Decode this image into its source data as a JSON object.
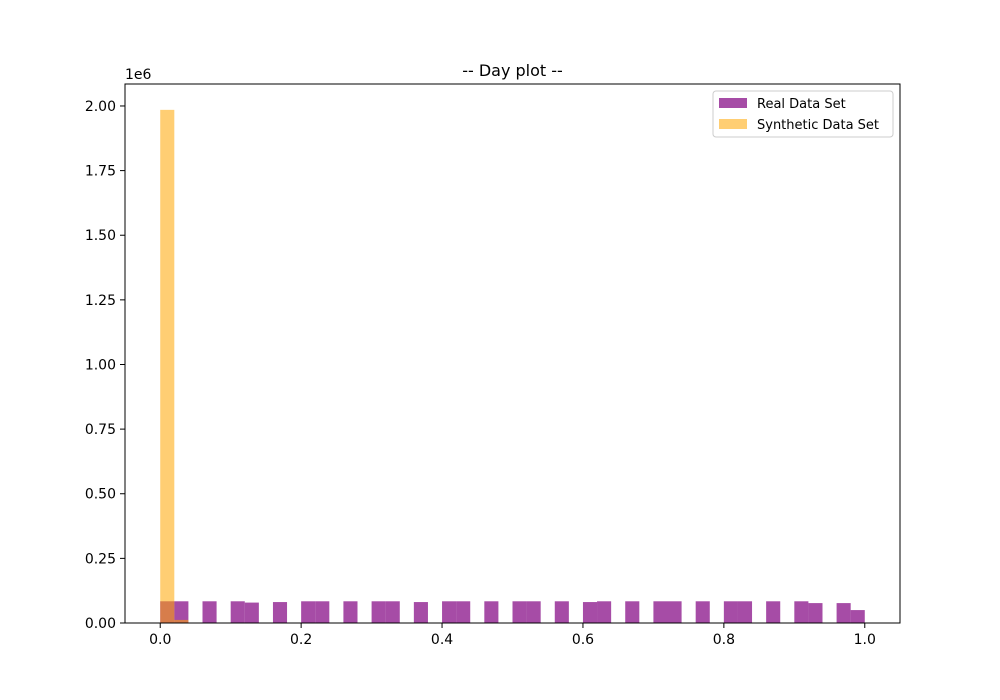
{
  "chart_data": {
    "type": "bar",
    "title": "-- Day plot --",
    "xlabel": "",
    "ylabel": "",
    "y_offset_label": "1e6",
    "xlim": [
      -0.05,
      1.05
    ],
    "ylim": [
      0,
      2085000
    ],
    "x_ticks": [
      0.0,
      0.2,
      0.4,
      0.6,
      0.8,
      1.0
    ],
    "x_tick_labels": [
      "0.0",
      "0.2",
      "0.4",
      "0.6",
      "0.8",
      "1.0"
    ],
    "y_ticks": [
      0,
      250000,
      500000,
      750000,
      1000000,
      1250000,
      1500000,
      1750000,
      2000000
    ],
    "y_tick_labels": [
      "0.00",
      "0.25",
      "0.50",
      "0.75",
      "1.00",
      "1.25",
      "1.50",
      "1.75",
      "2.00"
    ],
    "legend_position": "top-right",
    "bin_edges": [
      0.0,
      0.02,
      0.04,
      0.06,
      0.08,
      0.1,
      0.12,
      0.14,
      0.16,
      0.18,
      0.2,
      0.22,
      0.24,
      0.26,
      0.28,
      0.3,
      0.32,
      0.34,
      0.36,
      0.38,
      0.4,
      0.42,
      0.44,
      0.46,
      0.48,
      0.5,
      0.52,
      0.54,
      0.56,
      0.58,
      0.6,
      0.62,
      0.64,
      0.66,
      0.68,
      0.7,
      0.72,
      0.74,
      0.76,
      0.78,
      0.8,
      0.82,
      0.84,
      0.86,
      0.88,
      0.9,
      0.92,
      0.94,
      0.96,
      0.98,
      1.0
    ],
    "series": [
      {
        "name": "Real Data Set",
        "color": "#800080",
        "opacity": 0.7,
        "values": [
          84000,
          84000,
          0,
          84000,
          0,
          84000,
          79000,
          0,
          81000,
          0,
          84000,
          84000,
          0,
          84000,
          0,
          84000,
          84000,
          0,
          81000,
          0,
          84000,
          84000,
          0,
          84000,
          0,
          84000,
          84000,
          0,
          84000,
          0,
          81000,
          84000,
          0,
          84000,
          0,
          84000,
          84000,
          0,
          84000,
          0,
          84000,
          84000,
          0,
          84000,
          0,
          84000,
          77000,
          0,
          77000,
          50000
        ]
      },
      {
        "name": "Synthetic Data Set",
        "color": "#ffa500",
        "opacity": 0.55,
        "values": [
          1985000,
          12000,
          0,
          0,
          0,
          0,
          0,
          0,
          0,
          0,
          0,
          0,
          0,
          0,
          0,
          0,
          0,
          0,
          0,
          0,
          0,
          0,
          0,
          0,
          0,
          0,
          0,
          0,
          0,
          0,
          0,
          0,
          0,
          0,
          0,
          0,
          0,
          0,
          0,
          0,
          0,
          0,
          0,
          0,
          0,
          0,
          0,
          0,
          0,
          0
        ]
      }
    ]
  }
}
